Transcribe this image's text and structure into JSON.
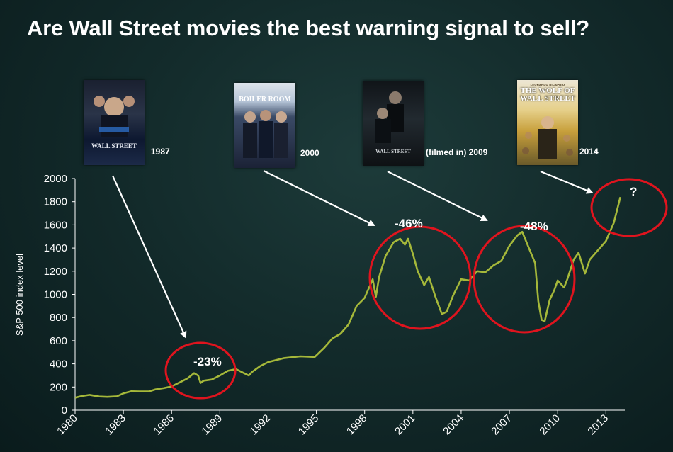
{
  "title": "Are Wall Street movies the best warning signal to sell?",
  "movies": [
    {
      "poster_title": "WALL STREET",
      "label": "1987"
    },
    {
      "poster_title": "BOILER ROOM",
      "label": "2000"
    },
    {
      "poster_title": "WALL STREET",
      "label": "(filmed in) 2009"
    },
    {
      "poster_title": "THE WOLF OF WALL STREET",
      "label": "2014",
      "top_credit": "LEONARDO DiCAPRIO"
    }
  ],
  "colors": {
    "background": "#132b2b",
    "line": "#a5b83a",
    "circle": "#e0141e",
    "arrow": "#ffffff",
    "text": "#ffffff"
  },
  "chart_data": {
    "type": "line",
    "ylabel": "S&P 500 index level",
    "xlabel": "",
    "xlim": [
      1980,
      2014
    ],
    "ylim": [
      0,
      2000
    ],
    "x_ticks": [
      "1980",
      "1983",
      "1986",
      "1989",
      "1992",
      "1995",
      "1998",
      "2001",
      "2004",
      "2007",
      "2010",
      "2013"
    ],
    "y_ticks": [
      "0",
      "200",
      "400",
      "600",
      "800",
      "1000",
      "1200",
      "1400",
      "1600",
      "1800",
      "2000"
    ],
    "series": [
      {
        "x": [
          1980.0,
          1980.4,
          1980.9,
          1981.5,
          1982.0,
          1982.6,
          1983.0,
          1983.5,
          1984.0,
          1984.6,
          1985.0,
          1985.5,
          1986.0,
          1986.5,
          1987.0,
          1987.4,
          1987.65,
          1987.8,
          1988.0,
          1988.5,
          1989.0,
          1989.5,
          1990.0,
          1990.5,
          1990.8,
          1991.0,
          1991.5,
          1992.0,
          1993.0,
          1994.0,
          1994.9,
          1995.5,
          1996.0,
          1996.5,
          1997.0,
          1997.5,
          1998.0,
          1998.5,
          1998.7,
          1998.9,
          1999.3,
          1999.8,
          2000.2,
          2000.5,
          2000.7,
          2001.0,
          2001.3,
          2001.7,
          2002.0,
          2002.4,
          2002.8,
          2003.1,
          2003.5,
          2004.0,
          2004.5,
          2005.0,
          2005.5,
          2006.0,
          2006.5,
          2007.0,
          2007.5,
          2007.8,
          2008.3,
          2008.6,
          2008.8,
          2009.0,
          2009.2,
          2009.5,
          2009.8,
          2010.0,
          2010.4,
          2010.6,
          2011.0,
          2011.3,
          2011.7,
          2012.0,
          2012.5,
          2013.0,
          2013.5,
          2013.9
        ],
        "values": [
          108,
          122,
          132,
          118,
          115,
          120,
          145,
          163,
          162,
          162,
          180,
          190,
          205,
          240,
          275,
          320,
          300,
          235,
          255,
          265,
          300,
          340,
          355,
          320,
          300,
          330,
          380,
          415,
          450,
          465,
          460,
          540,
          620,
          660,
          740,
          900,
          970,
          1130,
          980,
          1150,
          1330,
          1450,
          1480,
          1430,
          1480,
          1350,
          1200,
          1080,
          1150,
          980,
          830,
          850,
          990,
          1130,
          1120,
          1200,
          1190,
          1250,
          1290,
          1420,
          1510,
          1540,
          1370,
          1270,
          940,
          780,
          770,
          950,
          1040,
          1120,
          1060,
          1130,
          1300,
          1360,
          1180,
          1300,
          1380,
          1460,
          1620,
          1840
        ]
      }
    ],
    "annotations": [
      {
        "text": "-23%"
      },
      {
        "text": "-46%"
      },
      {
        "text": "-48%"
      },
      {
        "text": "?"
      }
    ],
    "grid": false,
    "legend": "none"
  }
}
